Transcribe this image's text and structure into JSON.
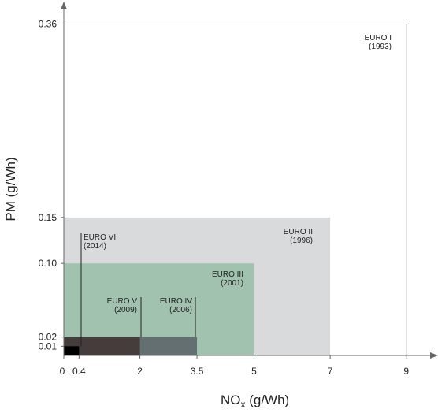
{
  "chart_data": {
    "type": "area",
    "title": "",
    "xlabel": "NO",
    "xlabel_sub": "x",
    "xlabel_unit": " (g/Wh)",
    "ylabel": "PM (g/Wh)",
    "xlim": [
      0,
      9.8
    ],
    "ylim": [
      0,
      0.39
    ],
    "x_ticks": [
      {
        "value": 0,
        "label": "0"
      },
      {
        "value": 0.4,
        "label": "0.4"
      },
      {
        "value": 2,
        "label": "2"
      },
      {
        "value": 3.5,
        "label": "3.5"
      },
      {
        "value": 5,
        "label": "5"
      },
      {
        "value": 7,
        "label": "7"
      },
      {
        "value": 9,
        "label": "9"
      }
    ],
    "y_ticks": [
      {
        "value": 0.01,
        "label": "0.01"
      },
      {
        "value": 0.02,
        "label": "0.02"
      },
      {
        "value": 0.1,
        "label": "0.10"
      },
      {
        "value": 0.15,
        "label": "0.15"
      },
      {
        "value": 0.36,
        "label": "0.36"
      }
    ],
    "standards": [
      {
        "name": "EURO I",
        "year": "(1993)",
        "nox": 9,
        "pm": 0.36,
        "fill": "none",
        "stroke": "#666666"
      },
      {
        "name": "EURO II",
        "year": "(1996)",
        "nox": 7,
        "pm": 0.15,
        "fill": "#d9dadc",
        "stroke": "none"
      },
      {
        "name": "EURO III",
        "year": "(2001)",
        "nox": 5,
        "pm": 0.1,
        "fill": "#a2c2b0",
        "stroke": "none"
      },
      {
        "name": "EURO IV",
        "year": "(2006)",
        "nox": 3.5,
        "pm": 0.02,
        "fill": "#646f71",
        "stroke": "none"
      },
      {
        "name": "EURO V",
        "year": "(2009)",
        "nox": 2,
        "pm": 0.02,
        "fill": "#443d3c",
        "stroke": "none"
      },
      {
        "name": "EURO VI",
        "year": "(2014)",
        "nox": 0.4,
        "pm": 0.01,
        "fill": "#000000",
        "stroke": "none"
      }
    ]
  }
}
